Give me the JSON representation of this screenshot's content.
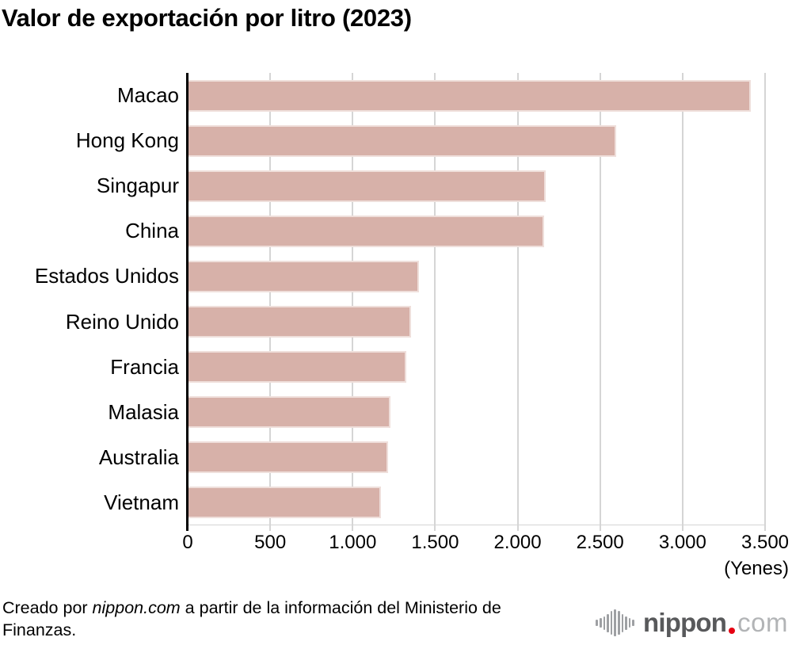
{
  "title": "Valor de exportación por litro (2023)",
  "chart_data": {
    "type": "bar",
    "orientation": "horizontal",
    "title": "Valor de exportación por litro (2023)",
    "categories": [
      "Macao",
      "Hong Kong",
      "Singapur",
      "China",
      "Estados Unidos",
      "Reino Unido",
      "Francia",
      "Malasia",
      "Australia",
      "Vietnam"
    ],
    "values": [
      3415,
      2595,
      2170,
      2160,
      1400,
      1355,
      1325,
      1228,
      1216,
      1170
    ],
    "xlim": [
      0,
      3500
    ],
    "x_tick_values": [
      0,
      500,
      1000,
      1500,
      2000,
      2500,
      3000,
      3500
    ],
    "x_ticks": [
      "0",
      "500",
      "1.000",
      "1.500",
      "2.000",
      "2.500",
      "3.000",
      "3.500"
    ],
    "unit_label": "(Yenes)",
    "xlabel": "",
    "ylabel": "",
    "grid": true,
    "legend": false,
    "bar_color": "#d7b1a9"
  },
  "footer": {
    "credit_prefix": "Creado por ",
    "credit_source": "nippon.com",
    "credit_suffix": " a partir de la información del Ministerio de Finanzas."
  },
  "logo": {
    "icon": "soundwave-bars-icon",
    "name": "nippon",
    "tld": "com",
    "dot_color": "#e60012",
    "name_color": "#58595b",
    "tld_color": "#b2b4b6"
  }
}
